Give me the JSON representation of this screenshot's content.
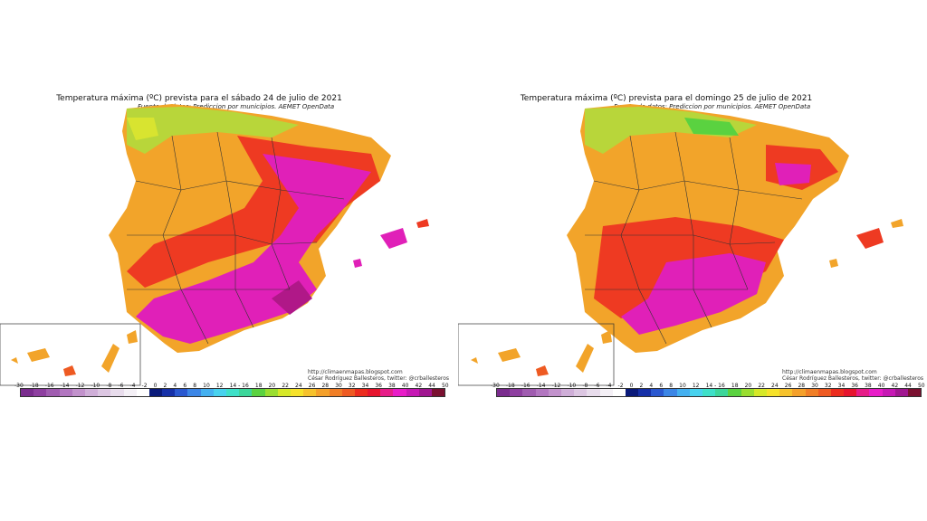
{
  "maps": [
    {
      "title": "Temperatura máxima (ºC) prevista para el sábado 24 de julio de 2021",
      "source": "Fuente de datos: Prediccion por municipios. AEMET OpenData",
      "credit_url": "http://climaenmapas.blogspot.com",
      "credit_author": "César Rodríguez Ballesteros, twitter: @crballesteros"
    },
    {
      "title": "Temperatura máxima (ºC) prevista para el domingo 25 de julio de 2021",
      "source": "Fuente de datos: Prediccion por municipios. AEMET OpenData",
      "credit_url": "http://climaenmapas.blogspot.com",
      "credit_author": "César Rodríguez Ballesteros, twitter: @crballesteros"
    }
  ],
  "legend": {
    "ticks": [
      "-30",
      "-18",
      "-16",
      "-14",
      "-12",
      "-10",
      "-8",
      "-6",
      "-4",
      "-2",
      "0",
      "2",
      "4",
      "6",
      "8",
      "10",
      "12",
      "14 - 16",
      "18",
      "20",
      "22",
      "24",
      "26",
      "28",
      "30",
      "32",
      "34",
      "36",
      "38",
      "40",
      "42",
      "44",
      "50"
    ],
    "colors": [
      "#7a2c8e",
      "#8e3fa0",
      "#a05cb0",
      "#b276c0",
      "#c292cc",
      "#cfaed8",
      "#dcc6e2",
      "#e8dcec",
      "#f4f0f6",
      "#ffffff",
      "#0a1a7a",
      "#1630a8",
      "#2a58d0",
      "#3c86e6",
      "#44b0f0",
      "#48d2ee",
      "#3ee0c8",
      "#3cd69a",
      "#5ad240",
      "#9ade30",
      "#d6e828",
      "#f6e22a",
      "#f6c22c",
      "#f4a02a",
      "#f07e26",
      "#ee5a22",
      "#ec2c1e",
      "#e6142e",
      "#e61c88",
      "#e81cc8",
      "#c618b4",
      "#a01690",
      "#7a1030"
    ]
  }
}
